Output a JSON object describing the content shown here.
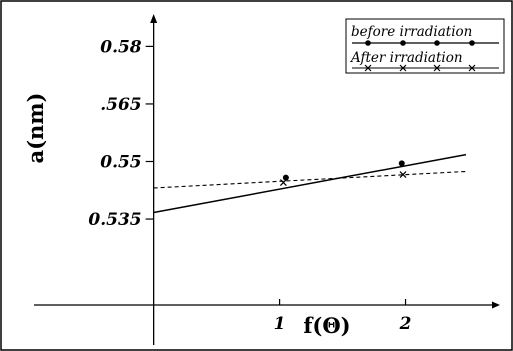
{
  "chart_data": {
    "type": "line",
    "xlabel": "f(Θ)",
    "ylabel": "a(nm)",
    "xlim": [
      -0.95,
      2.75
    ],
    "ylim": [
      0.5126,
      0.5874
    ],
    "x_ticks": [
      {
        "value": 1,
        "label": "1"
      },
      {
        "value": 2,
        "label": "2"
      }
    ],
    "y_ticks": [
      {
        "value": 0.58,
        "label": "0.58"
      },
      {
        "value": 0.565,
        "label": ".565"
      },
      {
        "value": 0.55,
        "label": "0.55"
      },
      {
        "value": 0.535,
        "label": "0.535"
      }
    ],
    "grid": false,
    "legend_position": "top-right",
    "series": [
      {
        "name": "before irradiation",
        "marker": "dot",
        "line_style": "solid",
        "color": "#000000",
        "points": [
          [
            1.05,
            0.5458
          ],
          [
            1.97,
            0.5495
          ]
        ],
        "fit": [
          [
            0,
            0.5367
          ],
          [
            2.48,
            0.5518
          ]
        ]
      },
      {
        "name": "After irradiation",
        "marker": "x",
        "line_style": "dashed",
        "color": "#000000",
        "points": [
          [
            1.03,
            0.5445
          ],
          [
            1.98,
            0.5466
          ]
        ],
        "fit": [
          [
            0,
            0.5431
          ],
          [
            2.48,
            0.5474
          ]
        ]
      }
    ]
  }
}
